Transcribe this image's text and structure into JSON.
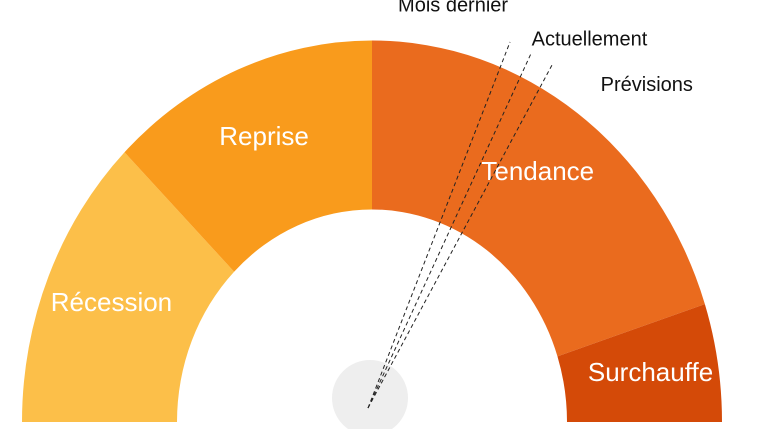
{
  "chart_data": {
    "type": "gauge",
    "min": 0,
    "max": 100,
    "bands": [
      {
        "name": "Récession",
        "from": 0,
        "to": 25,
        "color": "#fcbf49"
      },
      {
        "name": "Reprise",
        "from": 25,
        "to": 50,
        "color": "#f99b1c"
      },
      {
        "name": "Tendance",
        "from": 50,
        "to": 90,
        "color": "#ea6b1e"
      },
      {
        "name": "Surchauffe",
        "from": 90,
        "to": 100,
        "color": "#d44a08"
      }
    ],
    "needles": [
      {
        "name": "Mois dernier",
        "value": 62
      },
      {
        "name": "Actuellement",
        "value": 64
      },
      {
        "name": "Prévisions",
        "value": 66
      }
    ]
  }
}
